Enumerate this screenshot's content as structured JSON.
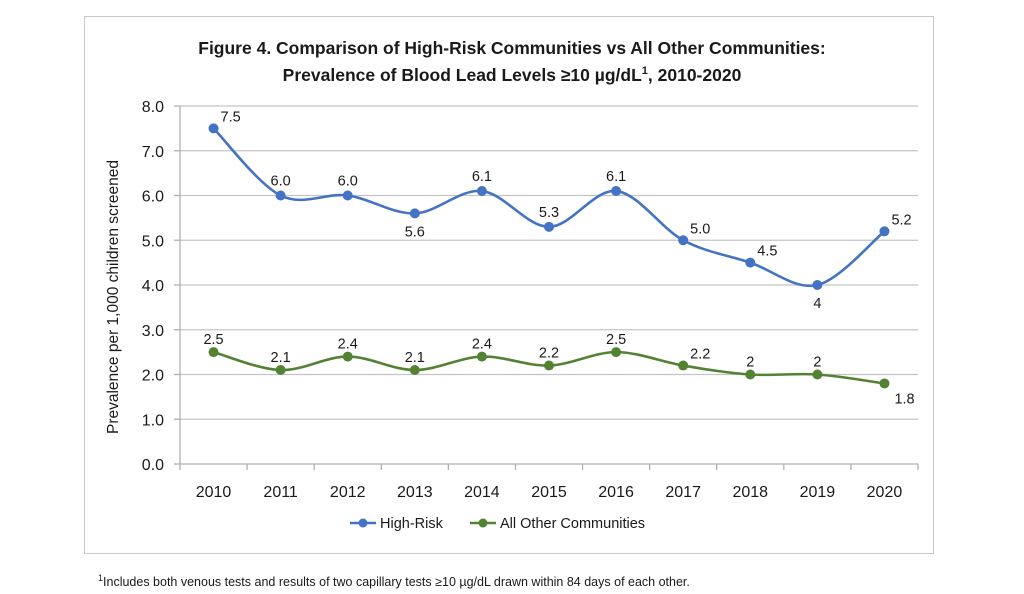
{
  "chart_data": {
    "type": "line",
    "title_line1": "Figure 4. Comparison of High-Risk Communities vs All Other Communities:",
    "title_line2_prefix": "Prevalence of Blood Lead Levels ≥10 µg/dL",
    "title_line2_sup": "1",
    "title_line2_suffix": ", 2010-2020",
    "xlabel": "",
    "ylabel": "Prevalence per 1,000 children screened",
    "categories": [
      "2010",
      "2011",
      "2012",
      "2013",
      "2014",
      "2015",
      "2016",
      "2017",
      "2018",
      "2019",
      "2020"
    ],
    "ylim": [
      0,
      8
    ],
    "yticks": [
      "0.0",
      "1.0",
      "2.0",
      "3.0",
      "4.0",
      "5.0",
      "6.0",
      "7.0",
      "8.0"
    ],
    "ytick_values": [
      0,
      1,
      2,
      3,
      4,
      5,
      6,
      7,
      8
    ],
    "grid": true,
    "legend_position": "bottom-center",
    "series": [
      {
        "name": "High-Risk",
        "color": "#4472c4",
        "values": [
          7.5,
          6.0,
          6.0,
          5.6,
          6.1,
          5.3,
          6.1,
          5.0,
          4.5,
          4.0,
          5.2
        ],
        "labels": [
          "7.5",
          "6.0",
          "6.0",
          "5.6",
          "6.1",
          "5.3",
          "6.1",
          "5.0",
          "4.5",
          "4",
          "5.2"
        ],
        "label_positions": [
          "right-above",
          "above",
          "above",
          "below",
          "above",
          "above",
          "above",
          "right-above",
          "right-above",
          "below",
          "right-above"
        ]
      },
      {
        "name": "All Other Communities",
        "color": "#548235",
        "values": [
          2.5,
          2.1,
          2.4,
          2.1,
          2.4,
          2.2,
          2.5,
          2.2,
          2.0,
          2.0,
          1.8
        ],
        "labels": [
          "2.5",
          "2.1",
          "2.4",
          "2.1",
          "2.4",
          "2.2",
          "2.5",
          "2.2",
          "2",
          "2",
          "1.8"
        ],
        "label_positions": [
          "above",
          "above",
          "above",
          "above",
          "above",
          "above",
          "above",
          "right-above",
          "above",
          "above",
          "right-below"
        ]
      }
    ],
    "footnote_sup": "1",
    "footnote": "Includes both venous tests and results of two capillary tests ≥10 µg/dL drawn within 84 days of each other."
  }
}
